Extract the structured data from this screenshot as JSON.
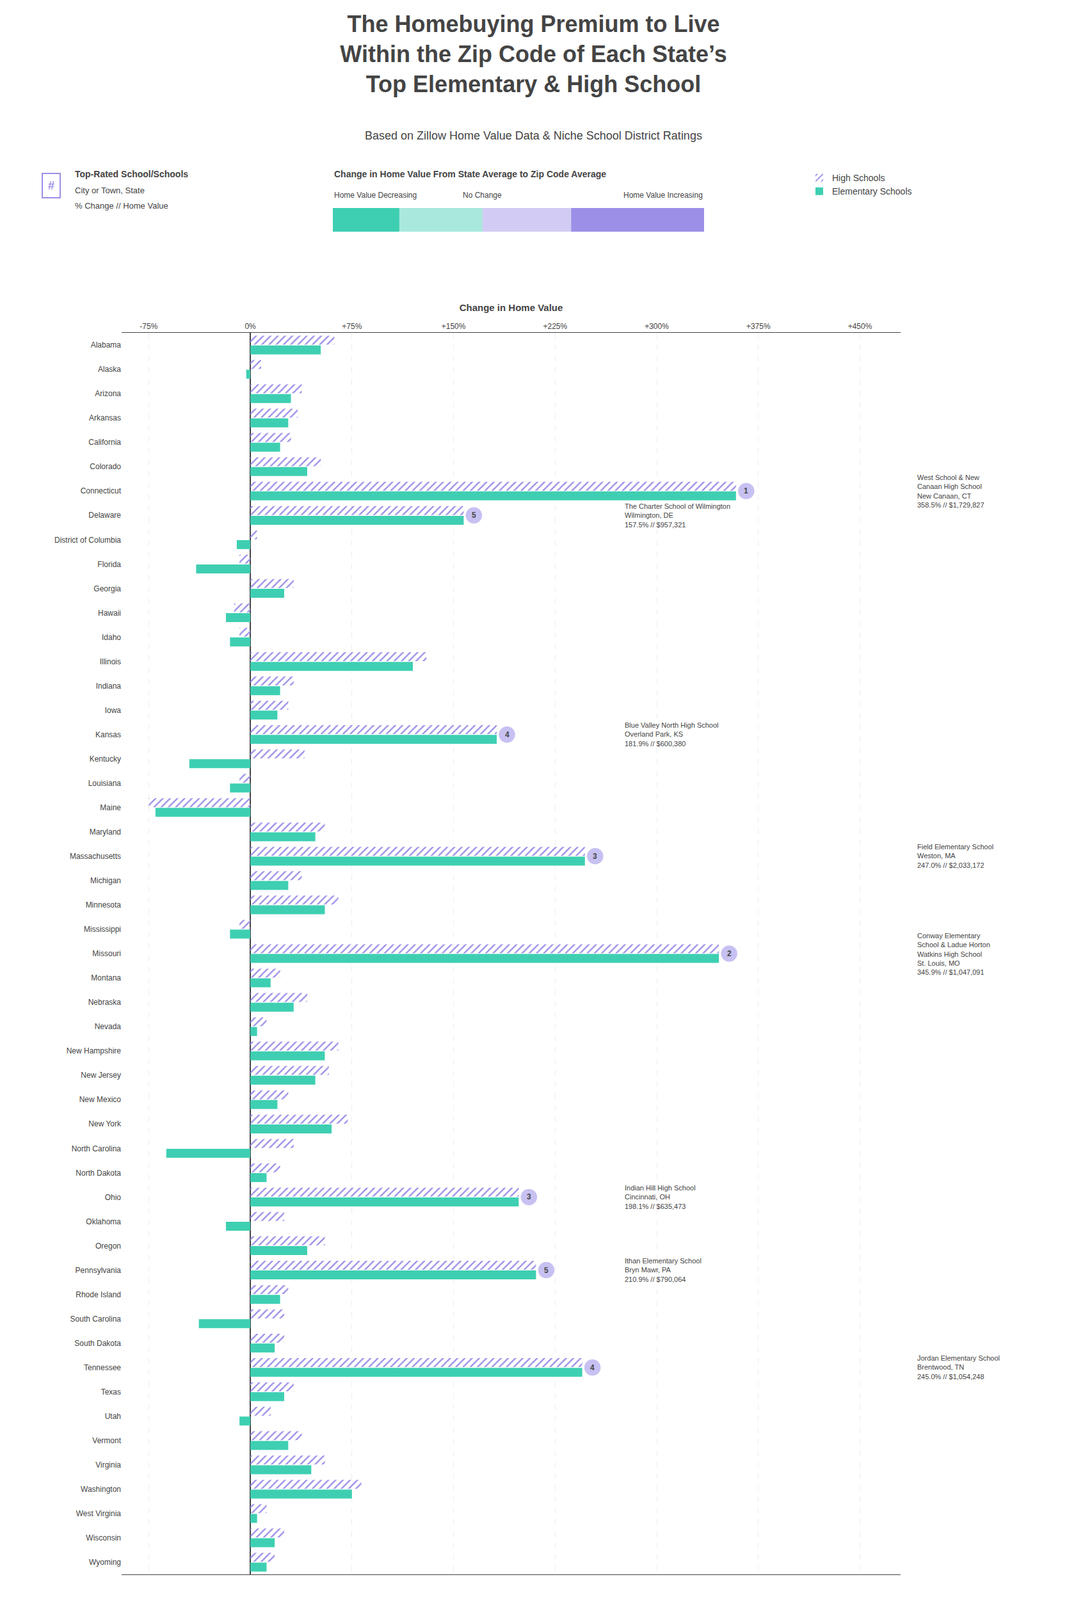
{
  "chart_data": {
    "type": "bar",
    "orientation": "horizontal",
    "title": "The Homebuying Premium to Live\nWithin the Zip Code of Each State’s\nTop Elementary & High School",
    "subtitle": "Based on Zillow Home Value Data & Niche School District Ratings",
    "x_label": "Change in Home Value",
    "categories": [
      "Alabama",
      "Alaska",
      "Arizona",
      "Arkansas",
      "California",
      "Colorado",
      "Connecticut",
      "Delaware",
      "District of Columbia",
      "Florida",
      "Georgia",
      "Hawaii",
      "Idaho",
      "Illinois",
      "Indiana",
      "Iowa",
      "Kansas",
      "Kentucky",
      "Louisiana",
      "Maine",
      "Maryland",
      "Massachusetts",
      "Michigan",
      "Minnesota",
      "Mississippi",
      "Missouri",
      "Montana",
      "Nebraska",
      "Nevada",
      "New Hampshire",
      "New Jersey",
      "New Mexico",
      "New York",
      "North Carolina",
      "North Dakota",
      "Ohio",
      "Oklahoma",
      "Oregon",
      "Pennsylvania",
      "Rhode Island",
      "South Carolina",
      "South Dakota",
      "Tennessee",
      "Texas",
      "Utah",
      "Vermont",
      "Virginia",
      "Washington",
      "West Virginia",
      "Wisconsin",
      "Wyoming"
    ],
    "series": [
      {
        "name": "High Schools",
        "color": "#9b8fe8",
        "marker": "hatched",
        "values": [
          62,
          8,
          38,
          35,
          30,
          52,
          358.5,
          157.5,
          5,
          -8,
          32,
          -12,
          -8,
          130,
          32,
          28,
          181.9,
          40,
          -8,
          -75,
          55,
          247,
          38,
          65,
          -8,
          345.9,
          22,
          42,
          12,
          65,
          58,
          28,
          72,
          32,
          22,
          198.1,
          25,
          55,
          210.9,
          28,
          25,
          25,
          245,
          32,
          15,
          38,
          55,
          82,
          12,
          25,
          18
        ]
      },
      {
        "name": "Elementary Schools",
        "color": "#3ecfb2",
        "values": [
          52,
          -3,
          30,
          28,
          22,
          42,
          358.5,
          157.5,
          -10,
          -40,
          25,
          -18,
          -15,
          120,
          22,
          20,
          181.9,
          -45,
          -15,
          -70,
          48,
          247,
          28,
          55,
          -15,
          345.9,
          15,
          32,
          5,
          55,
          48,
          20,
          60,
          -62,
          12,
          198.1,
          -18,
          42,
          210.9,
          22,
          -38,
          18,
          245,
          25,
          -8,
          28,
          45,
          75,
          5,
          18,
          12
        ]
      }
    ],
    "xlim": [
      -95,
      480
    ],
    "xticks": [
      {
        "value": -75,
        "label": "-75%"
      },
      {
        "value": 0,
        "label": "0%"
      },
      {
        "value": 75,
        "label": "+75%"
      },
      {
        "value": 150,
        "label": "+150%"
      },
      {
        "value": 225,
        "label": "+225%"
      },
      {
        "value": 300,
        "label": "+300%"
      },
      {
        "value": 375,
        "label": "+375%"
      },
      {
        "value": 450,
        "label": "+450%"
      }
    ],
    "grid": true,
    "legend": "top right",
    "annotations": [
      {
        "category": "Connecticut",
        "x": 358.5,
        "rank": 1,
        "text": "West School & New\nCanaan High School\nNew Canaan, CT\n358.5% // $1,729,827"
      },
      {
        "category": "Missouri",
        "x": 345.9,
        "rank": 2,
        "text": "Conway Elementary\nSchool & Ladue Horton\nWatkins High School\nSt. Louis, MO\n345.9% // $1,047,091"
      },
      {
        "category": "Massachusetts",
        "x": 247.0,
        "rank": 3,
        "text": "Field Elementary School\nWeston, MA\n247.0% // $2,033,172"
      },
      {
        "category": "Tennessee",
        "x": 245.0,
        "rank": 4,
        "text": "Jordan Elementary School\nBrentwood, TN\n245.0% // $1,054,248"
      },
      {
        "category": "Delaware",
        "x": 157.5,
        "rank": 5,
        "text": "The Charter School of Wilmington\nWilmington, DE\n157.5% // $957,321"
      },
      {
        "category": "Kansas",
        "x": 181.9,
        "rank": 4,
        "text": "Blue Valley North High School\nOverland Park, KS\n181.9% // $600,380"
      },
      {
        "category": "Ohio",
        "x": 198.1,
        "rank": 3,
        "text": "Indian Hill High School\nCincinnati, OH\n198.1% // $635,473"
      },
      {
        "category": "Pennsylvania",
        "x": 210.9,
        "rank": 5,
        "text": "Ithan Elementary School\nBryn Mawr, PA\n210.9% // $790,064"
      }
    ],
    "key": {
      "icon": "#",
      "heading": "Top-Rated School/Schools",
      "lines": [
        "City or Town, State",
        "% Change // Home Value"
      ],
      "scale_title": "Change in Home Value From State Average to Zip Code Average",
      "scale_labels": [
        "Home Value Decreasing",
        "No Change",
        "Home Value Increasing"
      ]
    }
  }
}
